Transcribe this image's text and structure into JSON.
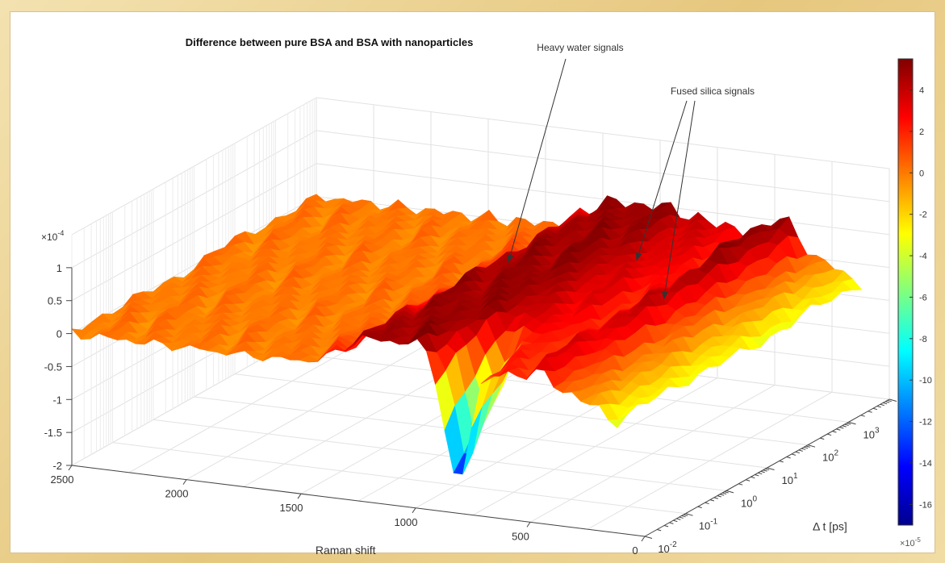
{
  "chart_data": {
    "type": "surface",
    "title": "Difference between pure BSA and BSA with nanoparticles",
    "xlabel": "Raman shift",
    "ylabel": "Δ t [ps]",
    "zlabel": "",
    "x_ticks": [
      "2500",
      "2000",
      "1500",
      "1000",
      "500",
      "0"
    ],
    "x_tick_values": [
      2500,
      2000,
      1500,
      1000,
      500,
      0
    ],
    "y_tick_exponents": [
      "-2",
      "-1",
      "0",
      "1",
      "2",
      "3"
    ],
    "y_tick_base": "10",
    "y_tick_exponent_values": [
      -2,
      -1,
      0,
      1,
      2,
      3
    ],
    "z_ticks": [
      "1",
      "0.5",
      "0",
      "-0.5",
      "-1",
      "-1.5",
      "-2"
    ],
    "z_tick_values": [
      1,
      0.5,
      0,
      -0.5,
      -1,
      -1.5,
      -2
    ],
    "z_multiplier": "×10",
    "z_multiplier_exp": "-4",
    "xlim": [
      0,
      2500
    ],
    "ylim_log10": [
      -2,
      4
    ],
    "zlim": [
      -0.0002,
      0.0001
    ],
    "grid": true,
    "colormap": "jet",
    "colorbar": {
      "ticks": [
        "4",
        "2",
        "0",
        "-2",
        "-4",
        "-6",
        "-8",
        "-10",
        "-12",
        "-14",
        "-16"
      ],
      "tick_values": [
        4,
        2,
        0,
        -2,
        -4,
        -6,
        -8,
        -10,
        -12,
        -14,
        -16
      ],
      "range": [
        -17,
        5.5
      ],
      "multiplier": "×10",
      "multiplier_exp": "-5",
      "position": "right"
    },
    "annotations": [
      {
        "text": "Heavy water signals"
      },
      {
        "text": "Fused silica signals"
      }
    ],
    "features": [
      {
        "label": "Heavy water signals",
        "raman_shift": 1200,
        "delta_z": 4e-05
      },
      {
        "label": "Fused silica signals",
        "raman_shift": 800,
        "delta_z": -0.00019
      },
      {
        "label": "Fused silica signals",
        "raman_shift": 450,
        "delta_z": 5.5e-05
      }
    ]
  }
}
